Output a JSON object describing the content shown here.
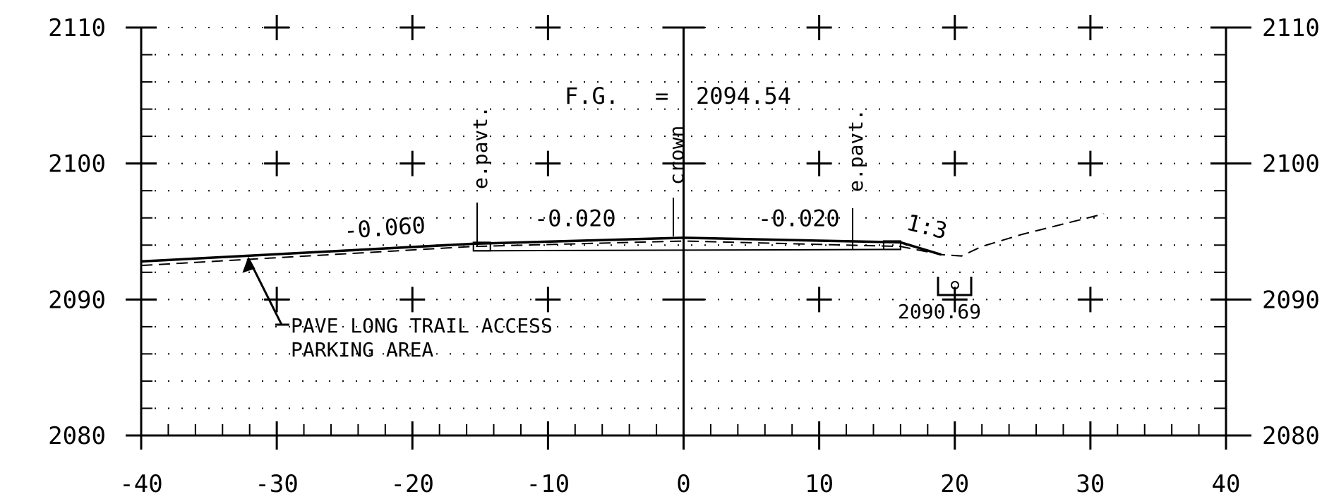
{
  "chart_data": {
    "type": "cross-section",
    "xlim": [
      -40,
      40
    ],
    "ylim": [
      2080,
      2110
    ],
    "x_ticks": [
      -40,
      -30,
      -20,
      -10,
      0,
      10,
      20,
      30,
      40
    ],
    "x_tick_labels": [
      "-40",
      "-30",
      "-20",
      "-10",
      "0",
      "10",
      "20",
      "30",
      "40"
    ],
    "y_ticks": [
      2080,
      2090,
      2100,
      2110
    ],
    "y_tick_labels_left": [
      "2080",
      "2090",
      "2100",
      "2110"
    ],
    "y_tick_labels_right": [
      "2080",
      "2090",
      "2100",
      "2110"
    ],
    "grid": "dotted",
    "finished_grade": [
      [
        -40,
        2092.8
      ],
      [
        -15.5,
        2094.1
      ],
      [
        0,
        2094.54
      ],
      [
        16,
        2094.2
      ],
      [
        19,
        2093.3
      ]
    ],
    "existing_ground": [
      [
        -40,
        2092.5
      ],
      [
        -15.5,
        2093.9
      ],
      [
        0,
        2094.3
      ],
      [
        16,
        2093.9
      ],
      [
        19,
        2093.3
      ],
      [
        20.5,
        2093.2
      ],
      [
        22,
        2093.9
      ],
      [
        25,
        2094.8
      ],
      [
        31,
        2096.3
      ]
    ],
    "pavement_edges": [
      -15.5,
      16
    ],
    "slopes": [
      {
        "label": "-0.060",
        "x": -22,
        "y": 2094.7
      },
      {
        "label": "-0.020",
        "x": -8,
        "y": 2095.4
      },
      {
        "label": "-0.020",
        "x": 8.5,
        "y": 2095.4
      },
      {
        "label": "1:3",
        "x": 17.8,
        "y": 2094.8
      }
    ],
    "annotations": {
      "fg_label": "F.G.",
      "fg_equals": "=",
      "fg_value": "2094.54",
      "epav_left": "e.pavt.",
      "crown": "crown",
      "epav_right": "e.pavt.",
      "callout_line1": "PAVE LONG TRAIL ACCESS",
      "callout_line2": "PARKING AREA",
      "ditch_elev": "2090.69"
    }
  }
}
